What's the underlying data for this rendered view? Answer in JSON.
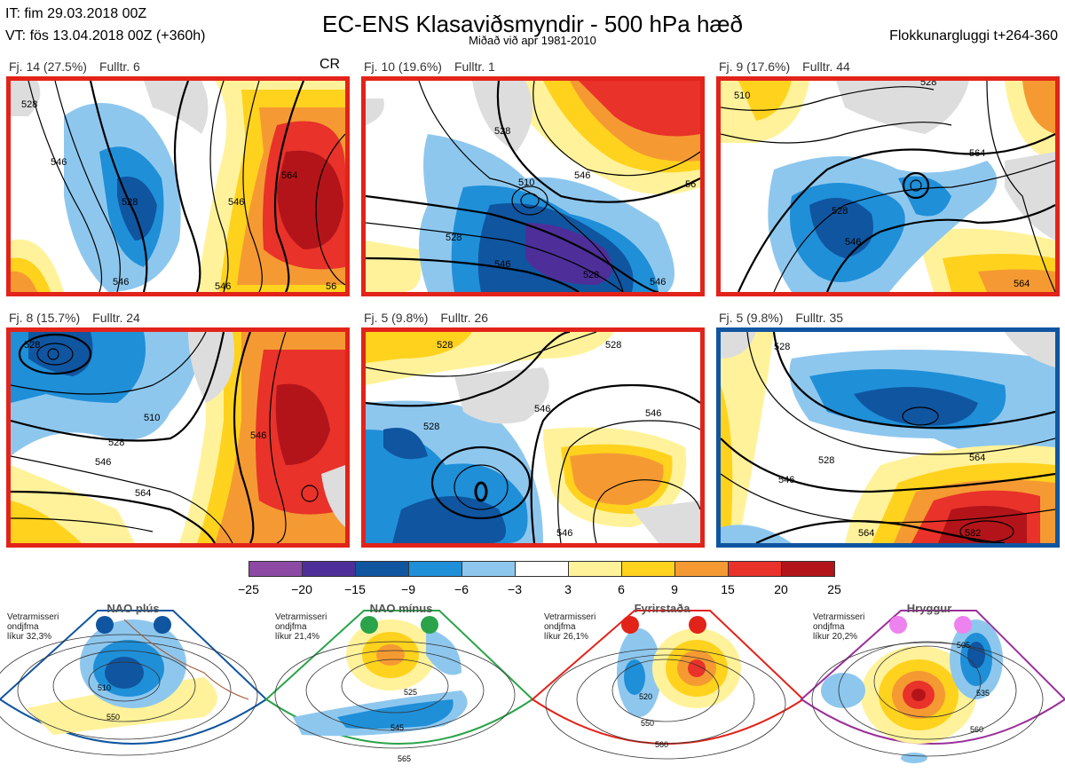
{
  "header": {
    "it": "IT: fim 29.03.2018 00Z",
    "vt": "VT: fös 13.04.2018 00Z  (+360h)",
    "title": "EC-ENS Klasaviðsmyndir - 500 hPa hæð",
    "subtitle": "Miðað við apr 1981-2010",
    "window": "Flokkunargluggi t+264-360"
  },
  "panels": [
    {
      "id": "p1",
      "freq": "Fj. 14 (27.5%)",
      "member": "Fulltr. 6",
      "tag": "CR",
      "border": "#e2231a",
      "contours": [
        "528",
        "546",
        "546",
        "564",
        "546",
        "546",
        "56"
      ]
    },
    {
      "id": "p2",
      "freq": "Fj. 10 (19.6%)",
      "member": "Fulltr. 1",
      "tag": "",
      "border": "#e2231a",
      "contours": [
        "528",
        "546",
        "510",
        "528",
        "546",
        "528",
        "546",
        "56"
      ]
    },
    {
      "id": "p3",
      "freq": "Fj. 9 (17.6%)",
      "member": "Fulltr. 44",
      "tag": "",
      "border": "#e2231a",
      "contours": [
        "510",
        "528",
        "528",
        "546",
        "564",
        "564"
      ]
    },
    {
      "id": "p4",
      "freq": "Fj. 8 (15.7%)",
      "member": "Fulltr. 24",
      "tag": "",
      "border": "#e2231a",
      "contours": [
        "528",
        "510",
        "528",
        "546",
        "564",
        "546"
      ]
    },
    {
      "id": "p5",
      "freq": "Fj. 5 (9.8%)",
      "member": "Fulltr. 26",
      "tag": "",
      "border": "#e2231a",
      "contours": [
        "528",
        "528",
        "546",
        "546",
        "528",
        "546"
      ]
    },
    {
      "id": "p6",
      "freq": "Fj. 5 (9.8%)",
      "member": "Fulltr. 35",
      "tag": "",
      "border": "#1055a0",
      "contours": [
        "528",
        "528",
        "546",
        "564",
        "564",
        "582"
      ]
    }
  ],
  "colorbar": {
    "colors": [
      "#8c4aa5",
      "#4e2f99",
      "#1055a0",
      "#1f8fd8",
      "#8ec7ee",
      "#ffffff",
      "#fff29a",
      "#ffd21e",
      "#f59a32",
      "#e8322a",
      "#b3141a"
    ],
    "ticks": [
      "−25",
      "−20",
      "−15",
      "−9",
      "−6",
      "−3",
      "3",
      "6",
      "9",
      "15",
      "20",
      "25"
    ]
  },
  "regimes": [
    {
      "name": "NAO plús",
      "color": "#1055a0",
      "season": "Vetrarmisseri",
      "note": "ondjfma",
      "prob": "líkur 32,3%",
      "contours": [
        "510",
        "550"
      ]
    },
    {
      "name": "NAO mínus",
      "color": "#2aa34a",
      "season": "Vetrarmisseri",
      "note": "ondjfma",
      "prob": "líkur 21,4%",
      "contours": [
        "525",
        "545",
        "565"
      ]
    },
    {
      "name": "Fyrirstaða",
      "color": "#e2231a",
      "season": "Vetrarmisseri",
      "note": "ondjfma",
      "prob": "líkur 26,1%",
      "contours": [
        "520",
        "550",
        "560"
      ]
    },
    {
      "name": "Hryggur",
      "color": "#9a2f9a",
      "season": "Vetrarmisseri",
      "note": "ondjfma",
      "prob": "líkur 20,2%",
      "contours": [
        "505",
        "535",
        "560"
      ]
    }
  ]
}
